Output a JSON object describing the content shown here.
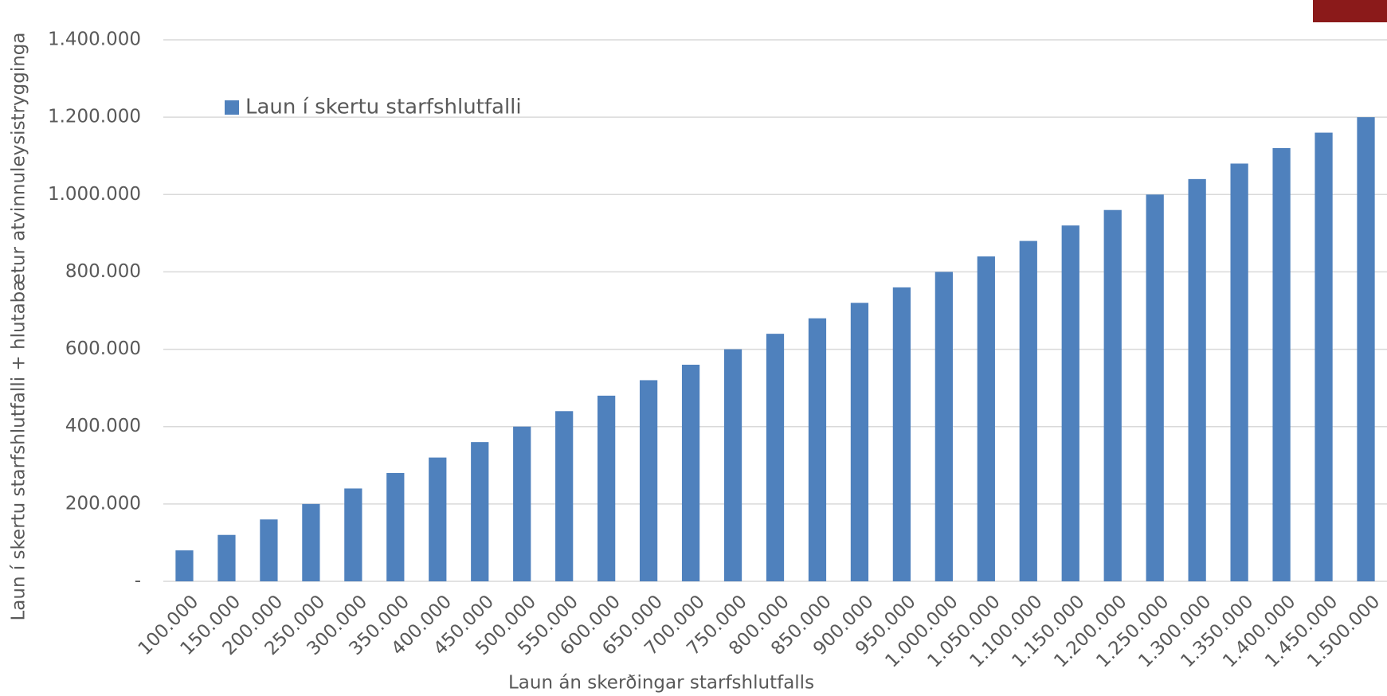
{
  "chart_data": {
    "type": "bar",
    "x_label": "Laun án skerðingar starfshlutfalls",
    "y_label": "Laun í skertu starfshlutfalli + hlutabætur atvinnuleysistrygginga",
    "categories": [
      "100.000",
      "150.000",
      "200.000",
      "250.000",
      "300.000",
      "350.000",
      "400.000",
      "450.000",
      "500.000",
      "550.000",
      "600.000",
      "650.000",
      "700.000",
      "750.000",
      "800.000",
      "850.000",
      "900.000",
      "950.000",
      "1.000.000",
      "1.050.000",
      "1.100.000",
      "1.150.000",
      "1.200.000",
      "1.250.000",
      "1.300.000",
      "1.350.000",
      "1.400.000",
      "1.450.000",
      "1.500.000"
    ],
    "series": [
      {
        "name": "Laun í skertu starfshlutfalli",
        "color": "#4f81bd",
        "values": [
          80000,
          120000,
          160000,
          200000,
          240000,
          280000,
          320000,
          360000,
          400000,
          440000,
          480000,
          520000,
          560000,
          600000,
          640000,
          680000,
          720000,
          760000,
          800000,
          840000,
          880000,
          920000,
          960000,
          1000000,
          1040000,
          1080000,
          1120000,
          1160000,
          1200000
        ]
      }
    ],
    "ylim": [
      0,
      1400000
    ],
    "yticks": [
      {
        "value": 0,
        "label": "-"
      },
      {
        "value": 200000,
        "label": "200.000"
      },
      {
        "value": 400000,
        "label": "400.000"
      },
      {
        "value": 600000,
        "label": "600.000"
      },
      {
        "value": 800000,
        "label": "800.000"
      },
      {
        "value": 1000000,
        "label": "1.000.000"
      },
      {
        "value": 1200000,
        "label": "1.200.000"
      },
      {
        "value": 1400000,
        "label": "1.400.000"
      }
    ],
    "grid": true,
    "legend": "top-left"
  }
}
